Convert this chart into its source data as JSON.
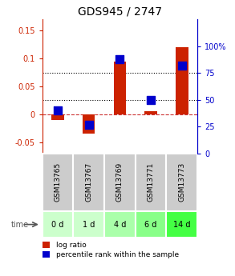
{
  "title": "GDS945 / 2747",
  "samples": [
    "GSM13765",
    "GSM13767",
    "GSM13769",
    "GSM13771",
    "GSM13773"
  ],
  "time_labels": [
    "0 d",
    "1 d",
    "4 d",
    "6 d",
    "14 d"
  ],
  "log_ratios": [
    -0.01,
    -0.035,
    0.095,
    0.005,
    0.12
  ],
  "percentile_ranks": [
    0.4,
    0.27,
    0.88,
    0.5,
    0.82
  ],
  "ylim_left": [
    -0.07,
    0.17
  ],
  "ylim_right": [
    0.0,
    1.25
  ],
  "yticks_left": [
    -0.05,
    0.0,
    0.05,
    0.1,
    0.15
  ],
  "ytick_labels_left": [
    "-0.05",
    "0",
    "0.05",
    "0.1",
    "0.15"
  ],
  "ytick_labels_right": [
    "0",
    "25",
    "50",
    "75",
    "100%"
  ],
  "bar_color_red": "#cc2200",
  "bar_color_blue": "#0000cc",
  "left_axis_color": "#cc2200",
  "right_axis_color": "#0000cc",
  "gsm_bg_color": "#cccccc",
  "time_bg_colors": [
    "#ccffcc",
    "#ccffcc",
    "#aaffaa",
    "#88ff88",
    "#44ff44"
  ],
  "bar_width": 0.4,
  "dot_size": 50
}
